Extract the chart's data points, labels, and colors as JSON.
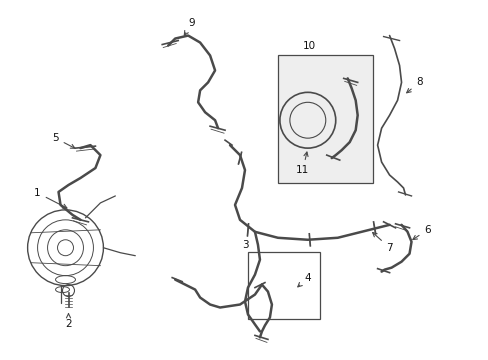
{
  "bg_color": "#ffffff",
  "line_color": "#4a4a4a",
  "label_color": "#111111",
  "figsize": [
    4.89,
    3.6
  ],
  "dpi": 100,
  "lw_hose": 1.8,
  "lw_thin": 0.9,
  "fontsize": 7.5
}
